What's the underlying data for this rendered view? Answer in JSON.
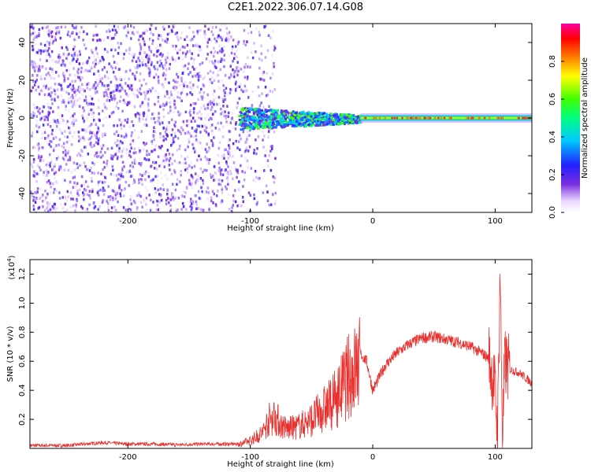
{
  "title": "C2E1.2022.306.07.14.G08",
  "colors": {
    "snr_line": "#e8302e",
    "spectrogram_background": "#ffffff",
    "spectrogram_low": "#7b2fe0",
    "spectrogram_high": "#ff2a1a"
  },
  "chart_data": [
    {
      "type": "heatmap",
      "title": "",
      "xlabel": "Height of straight line (km)",
      "ylabel": "Frequency (Hz)",
      "xlim": [
        -280,
        130
      ],
      "ylim": [
        -50,
        50
      ],
      "xticks": [
        -200,
        -100,
        0,
        100
      ],
      "xtick_labels": [
        "-200",
        "-100",
        "0",
        "100"
      ],
      "yticks": [
        -40,
        -20,
        0,
        20,
        40
      ],
      "ytick_labels": [
        "-40",
        "-20",
        "0",
        "20",
        "40"
      ],
      "colorbar": {
        "label": "Normalized spectral amplitude",
        "range": [
          0,
          1
        ],
        "ticks": [
          0.0,
          0.2,
          0.4,
          0.6,
          0.8
        ],
        "tick_labels": [
          "0.0",
          "0.2",
          "0.4",
          "0.6",
          "0.8"
        ],
        "colormap": "rainbow (white-violet-blue-cyan-green-yellow-red-magenta)"
      },
      "features": [
        {
          "x_range": [
            -280,
            -110
          ],
          "description_level": "low",
          "amplitude_approx": 0.1
        },
        {
          "x_range": [
            -110,
            -10
          ],
          "center_freq_hz": 0,
          "bandwidth_hz": 10,
          "amplitude_approx": 0.4
        },
        {
          "x_range": [
            -10,
            130
          ],
          "center_freq_hz": 0,
          "bandwidth_hz": 3,
          "amplitude_approx": 0.9
        }
      ]
    },
    {
      "type": "line",
      "title": "",
      "xlabel": "Height of straight line (km)",
      "ylabel": "SNR (10 * v/v)",
      "y_multiplier_label": "(x10",
      "y_multiplier_exp": "4",
      "y_multiplier_close": ")",
      "xlim": [
        -280,
        130
      ],
      "ylim": [
        0,
        1.3
      ],
      "xticks": [
        -200,
        -100,
        0,
        100
      ],
      "xtick_labels": [
        "-200",
        "-100",
        "0",
        "100"
      ],
      "yticks": [
        0.2,
        0.4,
        0.6,
        0.8,
        1.0,
        1.2
      ],
      "ytick_labels": [
        "0.2",
        "0.4",
        "0.6",
        "0.8",
        "1.0",
        "1.2"
      ],
      "grid": false,
      "series": [
        {
          "x": [
            -280,
            -250,
            -220,
            -200,
            -180,
            -160,
            -140,
            -120,
            -110,
            -100,
            -90,
            -85,
            -80,
            -75,
            -70,
            -60,
            -50,
            -40,
            -30,
            -20,
            -10,
            -5,
            0,
            10,
            20,
            30,
            40,
            50,
            60,
            70,
            80,
            90,
            95,
            100,
            102,
            104,
            106,
            108,
            110,
            120,
            130
          ],
          "y": [
            0.02,
            0.02,
            0.04,
            0.03,
            0.03,
            0.025,
            0.03,
            0.03,
            0.03,
            0.06,
            0.12,
            0.22,
            0.25,
            0.18,
            0.15,
            0.17,
            0.22,
            0.3,
            0.38,
            0.55,
            0.65,
            0.6,
            0.4,
            0.57,
            0.66,
            0.72,
            0.76,
            0.77,
            0.75,
            0.73,
            0.7,
            0.65,
            0.62,
            0.4,
            0.08,
            1.25,
            0.1,
            0.6,
            0.55,
            0.52,
            0.45
          ]
        }
      ]
    }
  ]
}
